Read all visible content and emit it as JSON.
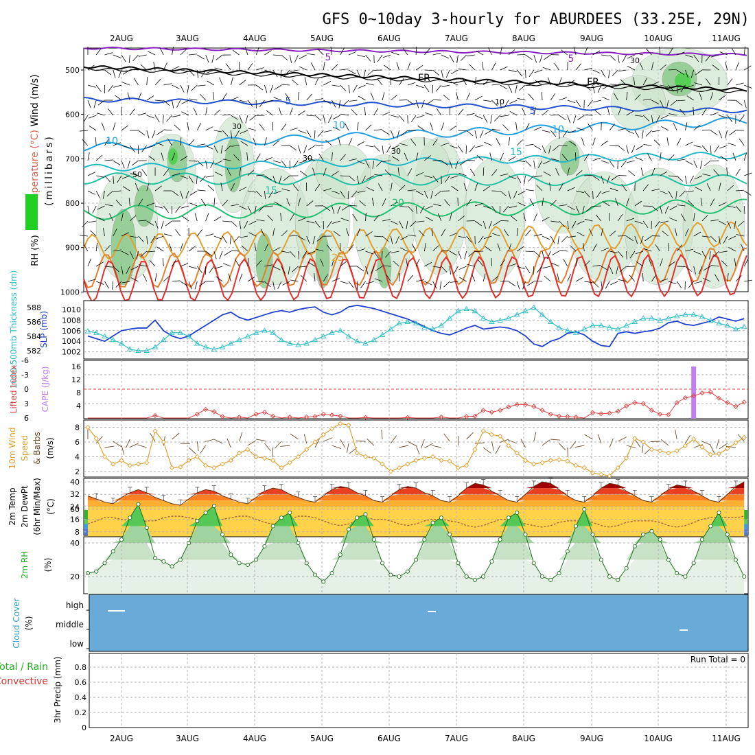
{
  "title": "GFS 0~10day 3-hourly for ABURDEES (33.25E, 29N)",
  "colors": {
    "grid": "#b0b0b0",
    "rh_mid_fill": "#c8e2c8",
    "rh_high_fill": "#88c888",
    "slp": "#1f3fd0",
    "thickness": "#30c0c8",
    "cape_li": "#e04040",
    "cape_bar": "#c080f0",
    "wind10": "#e0a030",
    "barb": "#6b4a2a",
    "rh2m": "#40c040",
    "cloud": "#6aaad8",
    "temp_purple": "#8a20c0",
    "temp_freeze": "#000000",
    "temp_blue": "#2050d0",
    "temp_cyan": "#20a0e0",
    "temp_teal": "#20c0a0",
    "temp_green": "#20c070",
    "temp_orange": "#e0a030",
    "temp_red": "#e03030"
  },
  "x_axis": {
    "days": [
      "2AUG",
      "3AUG",
      "4AUG",
      "5AUG",
      "6AUG",
      "7AUG",
      "8AUG",
      "9AUG",
      "10AUG",
      "11AUG"
    ],
    "steps_per_day": 8,
    "total_steps": 79
  },
  "panels": {
    "upper_air": {
      "axis_label": "(millibars)",
      "legend_parts": [
        "Wind (m/s)",
        "Temperature (°C)",
        "RH (%)"
      ],
      "y_ticks": [
        "500",
        "600",
        "700",
        "800",
        "900",
        "1000"
      ],
      "temp_labels": [
        "5",
        "5",
        "FR",
        "FR",
        "5",
        "5",
        "10",
        "10",
        "10",
        "15",
        "15",
        "20",
        "25"
      ],
      "rh_labels": [
        "30",
        "30",
        "50",
        "30",
        "10",
        "30"
      ]
    },
    "slp_thick": {
      "label_left": "1000-500mb Thickness (dm)",
      "label_right": "SLP (mb)",
      "left_ticks": [
        "588",
        "586",
        "584",
        "582"
      ],
      "right_ticks": [
        "1010",
        "1008",
        "1006",
        "1004",
        "1002"
      ]
    },
    "cape": {
      "label_left": "Lifted Index",
      "label_right": "CAPE (J/kg)",
      "left_ticks": [
        "-6",
        "-3",
        "0",
        "3",
        "6"
      ],
      "right_ticks": [
        "16",
        "12",
        "8",
        "4"
      ]
    },
    "wind10": {
      "label_lines": [
        "10m Wind",
        "Speed",
        "& Barbs"
      ],
      "unit": "(m/s)",
      "ticks": [
        "8",
        "6",
        "4",
        "2"
      ]
    },
    "temp2m": {
      "label_lines": [
        "2m Temp",
        "2m DewPt",
        "(6hr Min/Max)"
      ],
      "unit": "(°C)",
      "ticks": [
        "40",
        "32",
        "24",
        "16",
        "8"
      ]
    },
    "rh2m": {
      "label": "2m RH",
      "unit": "(%)",
      "ticks": [
        "60",
        "40",
        "20"
      ]
    },
    "cloud": {
      "label": "Cloud Cover",
      "unit": "(%)",
      "levels": [
        "high",
        "middle",
        "low"
      ]
    },
    "precip": {
      "label_lines": [
        "Total / Rain",
        "Convective"
      ],
      "label_right": "3hr Precip (mm)",
      "ticks": [
        "0.8",
        "0.6",
        "0.4",
        "0.2",
        "0"
      ],
      "run_total": "Run Total = 0"
    }
  },
  "chart_data": [
    {
      "type": "line",
      "name": "slp-thickness",
      "x_start": "1AUG 12Z",
      "x_step_hours": 3,
      "series": [
        {
          "name": "SLP (mb)",
          "axis": "right",
          "ylim": [
            1001,
            1011
          ],
          "values": [
            1005,
            1004.5,
            1004,
            1005,
            1006,
            1006.3,
            1006.5,
            1006.5,
            1008,
            1006,
            1005,
            1004.5,
            1005,
            1006,
            1007,
            1008,
            1009,
            1009.5,
            1008.5,
            1008,
            1008.5,
            1009,
            1009.5,
            1009.8,
            1009.5,
            1010,
            1010.3,
            1010.5,
            1009.5,
            1009,
            1009.5,
            1010.5,
            1010.8,
            1010.5,
            1010.2,
            1009.7,
            1009.2,
            1008.7,
            1008.2,
            1007.5,
            1006.8,
            1006,
            1005.5,
            1005.2,
            1005.8,
            1006.5,
            1007,
            1006.3,
            1006.5,
            1006.7,
            1006.5,
            1006,
            1005,
            1003.5,
            1003,
            1004,
            1004.5,
            1005.5,
            1005.8,
            1005.2,
            1004,
            1003.2,
            1003,
            1005.5,
            1005.8,
            1005.5,
            1005.8,
            1006,
            1006.5,
            1007.5,
            1007.8,
            1007.2,
            1007,
            1007.4,
            1007.8,
            1008.6,
            1008.2,
            1007.8,
            1008.3
          ]
        },
        {
          "name": "1000-500mb Thickness (dm)",
          "axis": "left",
          "ylim": [
            581,
            589
          ],
          "values": [
            584.7,
            584.5,
            584,
            583.5,
            583,
            582.2,
            582,
            582,
            582.5,
            583.5,
            584.5,
            584.5,
            584,
            583,
            582.5,
            582.2,
            582.5,
            583,
            583.5,
            584,
            584.5,
            584.8,
            584.5,
            583.5,
            583,
            582.8,
            583,
            583.5,
            584,
            584.5,
            584.8,
            584,
            583.3,
            583,
            583.5,
            584.2,
            585,
            585.8,
            586,
            585.8,
            585.2,
            585,
            585.5,
            586.5,
            587.5,
            587.8,
            587.5,
            586.5,
            586,
            586.2,
            586.5,
            587,
            587.5,
            588,
            587,
            586,
            585.2,
            584.8,
            584.5,
            585,
            585.5,
            585.5,
            585.2,
            585,
            585.5,
            586,
            586.5,
            586.5,
            586.2,
            586.5,
            586.8,
            587,
            587,
            586.7,
            586.2,
            585.8,
            585.5,
            585,
            585.3
          ]
        }
      ]
    },
    {
      "type": "line",
      "name": "cape-lifted-index",
      "x_start": "1AUG 12Z",
      "x_step_hours": 3,
      "series": [
        {
          "name": "Lifted Index",
          "ylim": [
            6,
            -6
          ],
          "values": [
            6,
            6,
            6,
            6,
            6,
            6,
            6,
            6,
            5.5,
            6,
            6,
            6,
            6,
            5.2,
            4.2,
            4.7,
            5.7,
            6,
            5.8,
            6,
            5.2,
            4.8,
            5.6,
            6,
            5.8,
            6,
            5.8,
            5.7,
            5.2,
            5.4,
            5.6,
            6,
            6,
            5.9,
            6,
            6,
            6,
            6,
            5.9,
            6,
            6,
            6,
            5.8,
            6,
            6,
            5.7,
            5.6,
            4.4,
            4.8,
            4.4,
            3.7,
            3.2,
            3.2,
            3.6,
            4.4,
            5.2,
            5.6,
            5.7,
            5.8,
            6,
            4.9,
            5.1,
            5,
            4.6,
            3.5,
            2.8,
            3,
            4.4,
            5.2,
            5.3,
            2.8,
            1.8,
            1.4,
            0.8,
            0.6,
            1.9,
            2.8,
            3.6,
            2.7
          ]
        },
        {
          "name": "CAPE (J/kg)",
          "type": "bar",
          "ylim": [
            0,
            16
          ],
          "bars": [
            {
              "x_index": 72,
              "value": 16
            }
          ]
        }
      ]
    },
    {
      "type": "line",
      "name": "10m-wind-speed",
      "ylim": [
        1,
        9
      ],
      "x_start": "1AUG 12Z",
      "x_step_hours": 3,
      "series": [
        {
          "name": "10m Wind Speed",
          "values": [
            8,
            6.5,
            4,
            3,
            3.5,
            2.8,
            3,
            3.2,
            7.5,
            6,
            2.5,
            2.6,
            3.5,
            4,
            2.8,
            2.5,
            3,
            3.5,
            4.5,
            5,
            4,
            3.8,
            3.5,
            2.5,
            3.2,
            4,
            5,
            6,
            7,
            7.8,
            8.5,
            8.3,
            4.5,
            4,
            3.8,
            3,
            2,
            2.5,
            3,
            3.5,
            3.8,
            4,
            3.5,
            3.4,
            2.5,
            2.8,
            5,
            7.5,
            7,
            6.8,
            5.5,
            4.5,
            3.5,
            3,
            3.2,
            3.5,
            3.6,
            3.4,
            2.8,
            2.5,
            1.8,
            1.6,
            1.4,
            2.5,
            3.8,
            6.5,
            6,
            5,
            4.8,
            4.5,
            4.8,
            5.5,
            6.4,
            5.3,
            4.3,
            4.4,
            5.1,
            5.9,
            6.6
          ]
        }
      ]
    },
    {
      "type": "area",
      "name": "2m-temp-dewpt",
      "ylim": [
        6,
        42
      ],
      "x_start": "1AUG 12Z",
      "x_step_hours": 3,
      "series": [
        {
          "name": "2m Temp",
          "values": [
            31,
            29,
            27,
            26,
            30,
            33,
            35,
            33,
            30,
            28,
            26,
            25,
            29,
            33,
            35,
            34,
            31,
            29,
            27,
            26,
            30,
            34,
            36,
            35,
            32,
            30,
            28,
            27,
            31,
            35,
            37,
            36,
            33,
            31,
            28,
            27,
            31,
            35,
            37,
            36,
            33,
            31,
            28,
            27,
            31,
            36,
            39,
            38,
            34,
            31,
            28,
            27,
            32,
            37,
            40,
            39,
            35,
            31,
            28,
            27,
            31,
            36,
            39,
            38,
            34,
            31,
            28,
            27,
            31,
            35,
            38,
            37,
            34,
            31,
            28,
            27,
            32,
            37,
            40
          ]
        },
        {
          "name": "2m DewPt",
          "values": [
            13,
            15,
            17,
            17,
            16,
            15,
            14,
            15,
            15,
            17,
            18,
            18,
            17,
            16,
            14,
            15,
            16,
            17,
            18,
            18,
            16,
            14,
            13,
            14,
            16,
            18,
            18,
            17,
            15,
            13,
            12,
            13,
            15,
            17,
            16,
            16,
            15,
            13,
            12,
            13,
            15,
            16,
            16,
            15,
            14,
            12,
            11,
            12,
            14,
            16,
            16,
            15,
            13,
            12,
            11,
            12,
            14,
            15,
            15,
            15,
            14,
            12,
            11,
            12,
            14,
            15,
            15,
            15,
            14,
            12,
            11,
            12,
            14,
            16,
            17,
            17,
            17,
            17,
            18
          ]
        }
      ]
    },
    {
      "type": "area",
      "name": "2m-rh",
      "ylim": [
        0,
        70
      ],
      "x_start": "1AUG 12Z",
      "x_step_hours": 3,
      "series": [
        {
          "name": "2m RH",
          "values": [
            22,
            23,
            28,
            35,
            42,
            55,
            63,
            49,
            31,
            29,
            26,
            30,
            40,
            53,
            58,
            62,
            45,
            33,
            28,
            27,
            30,
            38,
            50,
            55,
            58,
            40,
            28,
            21,
            17,
            22,
            33,
            48,
            55,
            57,
            42,
            28,
            21,
            20,
            23,
            30,
            42,
            52,
            55,
            45,
            28,
            20,
            18,
            20,
            29,
            42,
            55,
            58,
            45,
            28,
            20,
            18,
            22,
            35,
            50,
            60,
            45,
            30,
            20,
            18,
            25,
            38,
            45,
            47,
            42,
            30,
            22,
            20,
            28,
            42,
            50,
            58,
            45,
            30,
            20
          ]
        }
      ]
    },
    {
      "type": "area",
      "name": "3hr-precip",
      "ylim": [
        0,
        1
      ],
      "x_start": "1AUG 12Z",
      "x_step_hours": 3,
      "series": [
        {
          "name": "Total / Rain",
          "values": []
        },
        {
          "name": "Convective",
          "values": []
        }
      ]
    }
  ]
}
